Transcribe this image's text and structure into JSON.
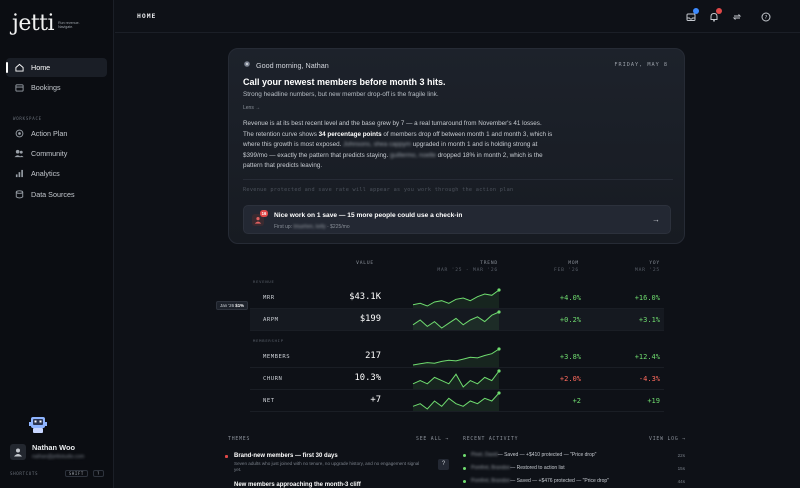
{
  "app": {
    "logo_word": "jetti",
    "logo_tagline": "Run revenue. Navigate.",
    "accent": "#6fdc6f",
    "negative": "#ff6b5e"
  },
  "sidebar": {
    "items": [
      {
        "label": "Home",
        "icon": "home-icon",
        "active": true
      },
      {
        "label": "Bookings",
        "icon": "calendar-icon",
        "active": false
      }
    ],
    "section_label": "WORKSPACE",
    "workspace_items": [
      {
        "label": "Action Plan",
        "icon": "target-icon"
      },
      {
        "label": "Community",
        "icon": "people-icon"
      },
      {
        "label": "Analytics",
        "icon": "chart-icon"
      },
      {
        "label": "Data Sources",
        "icon": "database-icon"
      }
    ],
    "user": {
      "name": "Nathan Woo",
      "email": "nathan@jettistudio.com"
    },
    "shortcuts_label": "SHORTCUTS",
    "shortcut_keys": [
      "SHIFT",
      "?"
    ]
  },
  "topbar": {
    "breadcrumb": "HOME",
    "icons": [
      "inbox-icon",
      "bell-icon",
      "sync-icon",
      "help-icon"
    ],
    "badge_colors": [
      "#3d8bff",
      "#e04848"
    ]
  },
  "briefing": {
    "greeting": "Good morning, Nathan",
    "date": "FRIDAY, MAY 8",
    "headline": "Call your newest members before month 3 hits.",
    "subhead": "Strong headline numbers, but new member drop-off is the fragile link.",
    "lens_label": "Lens →",
    "body_1": "Revenue is at its best recent level and the base grew by 7 — a real turnaround from November's 41 losses. The retention curve shows ",
    "body_bold": "34 percentage points",
    "body_2": " of members drop off between month 1 and month 3, which is where this growth is most exposed. ",
    "body_blur_1": "Johnsons, shea cappym",
    "body_3": " upgraded in month 1 and is holding strong at $399/mo — exactly the pattern that predicts staying. ",
    "body_blur_2": "guillermo, noelle",
    "body_4": " dropped 18% in month 2, which is the pattern that predicts leaving.",
    "placeholder": "Revenue protected and save rate will appear as you work through the action plan",
    "action": {
      "badge": "16",
      "title": "Nice work on 1 save — 15 more people could use a check-in",
      "sub_prefix": "First up: ",
      "sub_name": "tmuehen, kelly",
      "sub_suffix": " · $225/mo",
      "arrow": "→"
    }
  },
  "metrics": {
    "col_value": "VALUE",
    "col_trend": "TREND",
    "col_trend_sub": "MAR '25 - MAR '26",
    "col_mom": "MOM",
    "col_mom_sub": "FEB '26",
    "col_yoy": "YOY",
    "col_yoy_sub": "MAR '25",
    "groups": [
      "REVENUE",
      "MEMBERSHIP"
    ],
    "tooltip_label": "Jan '26",
    "tooltip_value": "$1%",
    "rows": [
      {
        "name": "MRR",
        "value": "$43.1K",
        "mom": "+4.0%",
        "yoy": "+16.0%",
        "mom_dir": "pos",
        "yoy_dir": "pos",
        "trend": [
          30,
          31,
          29,
          32,
          33,
          31,
          34,
          35,
          33,
          36,
          38,
          37,
          41
        ]
      },
      {
        "name": "ARPM",
        "value": "$199",
        "mom": "+0.2%",
        "yoy": "+3.1%",
        "mom_dir": "pos",
        "yoy_dir": "pos",
        "trend": [
          191,
          194,
          190,
          193,
          189,
          192,
          195,
          191,
          194,
          196,
          193,
          197,
          199
        ]
      },
      {
        "name": "MEMBERS",
        "value": "217",
        "mom": "+3.8%",
        "yoy": "+12.4%",
        "mom_dir": "pos",
        "yoy_dir": "pos",
        "trend": [
          190,
          192,
          194,
          193,
          196,
          198,
          197,
          200,
          203,
          202,
          206,
          209,
          217
        ]
      },
      {
        "name": "CHURN",
        "value": "10.3%",
        "mom": "+2.0%",
        "yoy": "-4.3%",
        "mom_dir": "neg",
        "yoy_dir": "neg",
        "trend": [
          9,
          10,
          9,
          11,
          10,
          9,
          12,
          8,
          10,
          9,
          11,
          10,
          13
        ]
      },
      {
        "name": "NET",
        "value": "+7",
        "mom": "+2",
        "yoy": "+19",
        "mom_dir": "pos",
        "yoy_dir": "pos",
        "trend": [
          2,
          3,
          1,
          4,
          2,
          5,
          3,
          2,
          4,
          3,
          5,
          4,
          7
        ]
      }
    ]
  },
  "themes": {
    "title": "THEMES",
    "see_all": "SEE ALL →",
    "items": [
      {
        "title": "Brand-new members — first 30 days",
        "desc": "Seven adults who just joined with no tenure, no upgrade history, and no engagement signal yet.",
        "badge": "?"
      },
      {
        "title": "New members approaching the month-3 cliff",
        "desc": ""
      }
    ]
  },
  "activity": {
    "title": "RECENT ACTIVITY",
    "view_log": "VIEW LOG →",
    "items": [
      {
        "name": "Pinel, David",
        "text": " — Saved — +$410 protected — \"Price drop\"",
        "time": "22s"
      },
      {
        "name": "Pomfret, Brandon",
        "text": " — Restored to action list",
        "time": "15s"
      },
      {
        "name": "Pomfret, Brandon",
        "text": " — Saved — +$476 protected — \"Price drop\"",
        "time": "44s"
      }
    ]
  }
}
